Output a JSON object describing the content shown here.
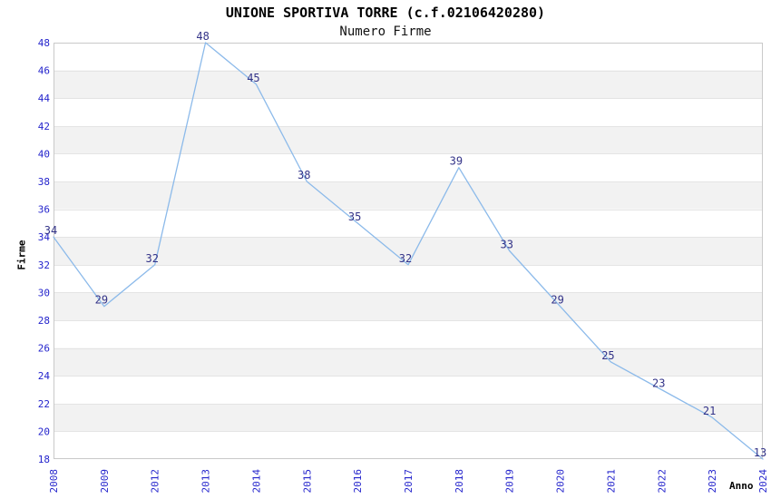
{
  "header": {
    "title": "UNIONE SPORTIVA TORRE (c.f.02106420280)",
    "subtitle": "Numero Firme"
  },
  "chart_data": {
    "type": "line",
    "title": "UNIONE SPORTIVA TORRE (c.f.02106420280)",
    "subtitle": "Numero Firme",
    "xlabel": "Anno",
    "ylabel": "Firme",
    "categories": [
      "2008",
      "2009",
      "2012",
      "2013",
      "2014",
      "2015",
      "2016",
      "2017",
      "2018",
      "2019",
      "2020",
      "2021",
      "2022",
      "2023",
      "2024"
    ],
    "series": [
      {
        "name": "Numero Firme",
        "values": [
          34,
          29,
          32,
          48,
          45,
          38,
          35,
          32,
          39,
          33,
          29,
          25,
          23,
          21,
          13
        ]
      }
    ],
    "point_labels_visible": true,
    "ylim": [
      18,
      48
    ],
    "ytick_step": 2,
    "yticks": [
      18,
      20,
      22,
      24,
      26,
      28,
      30,
      32,
      34,
      36,
      38,
      40,
      42,
      44,
      46,
      48
    ],
    "clamp_values_to_ylim": true,
    "legend": "none",
    "grid": {
      "horizontal_bands_alternating": true,
      "band_color": "#F2F2F2",
      "line_color": "#E4E4E4"
    },
    "colors": {
      "line": "#8CBAEA",
      "axis_tick_labels": "#2424CC",
      "point_labels": "#333388",
      "plot_border": "#C9C9C9",
      "title_text": "#000000"
    }
  }
}
